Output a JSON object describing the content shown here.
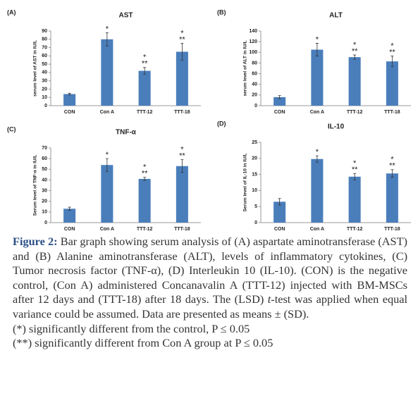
{
  "chart_data": [
    {
      "type": "bar",
      "panel": "(A)",
      "title": "AST",
      "ylabel": "serum level of AST in IU/L",
      "categories": [
        "CON",
        "Con A",
        "TTT-12",
        "TTT-18"
      ],
      "values": [
        14,
        80,
        42,
        65
      ],
      "errors": [
        1,
        8,
        4,
        10
      ],
      "markers": [
        null,
        [
          "*"
        ],
        [
          "*",
          "**"
        ],
        [
          "*",
          "**"
        ]
      ],
      "color": "#4a7ebb",
      "ylim": [
        0,
        90
      ],
      "yticks": [
        0,
        10,
        20,
        30,
        40,
        50,
        60,
        70,
        80,
        90
      ]
    },
    {
      "type": "bar",
      "panel": "(B)",
      "title": "ALT",
      "ylabel": "serum level of ALT in IU/L",
      "categories": [
        "CON",
        "Con A",
        "TTT-12",
        "TTT-18"
      ],
      "values": [
        16,
        105,
        91,
        83
      ],
      "errors": [
        3,
        12,
        4,
        10
      ],
      "markers": [
        null,
        [
          "*"
        ],
        [
          "*",
          "**"
        ],
        [
          "*",
          "**"
        ]
      ],
      "color": "#4a7ebb",
      "ylim": [
        0,
        140
      ],
      "yticks": [
        0,
        20,
        40,
        60,
        80,
        100,
        120,
        140
      ]
    },
    {
      "type": "bar",
      "panel": "(C)",
      "title": "TNF-α",
      "ylabel": "Serum level of TNF-α  in IU/L",
      "categories": [
        "CON",
        "Con A",
        "TTT-12",
        "TTT-18"
      ],
      "values": [
        13,
        54,
        41,
        53
      ],
      "errors": [
        1.5,
        6,
        1.5,
        6
      ],
      "markers": [
        null,
        [
          "*"
        ],
        [
          "*",
          "**"
        ],
        [
          "*",
          "**"
        ]
      ],
      "color": "#4a7ebb",
      "ylim": [
        0,
        70
      ],
      "yticks": [
        0,
        10,
        20,
        30,
        40,
        50,
        60,
        70
      ]
    },
    {
      "type": "bar",
      "panel": "(D)",
      "title": "IL-10",
      "ylabel": "Serum level of IL-10 in IU/L",
      "categories": [
        "CON",
        "Con A",
        "TTT-12",
        "TTT-18"
      ],
      "values": [
        6.5,
        19.8,
        14.3,
        15.3
      ],
      "errors": [
        1,
        1,
        1,
        1.2
      ],
      "markers": [
        null,
        [
          "*"
        ],
        [
          "*",
          "**"
        ],
        [
          "*",
          "**"
        ]
      ],
      "color": "#4a7ebb",
      "ylim": [
        0,
        25
      ],
      "yticks": [
        0,
        5,
        10,
        15,
        20,
        25
      ]
    }
  ],
  "caption": {
    "label": "Figure 2:",
    "text_1": " Bar graph showing serum analysis of (A) aspartate aminotransferase (AST) and (B) Alanine aminotransferase (ALT), levels of inflammatory cytokines, (C) Tumor necrosis factor (TNF-α), (D) Interleukin 10 (IL-10). (CON) is the negative control, (Con A) administered Concanavalin A (TTT-12) injected with BM-MSCs after 12 days and (TTT-18) after 18 days. The (LSD) ",
    "italic": "t",
    "text_2": "-test was applied when equal variance could be assumed. Data are presented as means ± (SD).",
    "notes": [
      "(*) significantly different from the control, P ≤ 0.05",
      "(**) significantly different from Con A group at P ≤ 0.05"
    ]
  }
}
